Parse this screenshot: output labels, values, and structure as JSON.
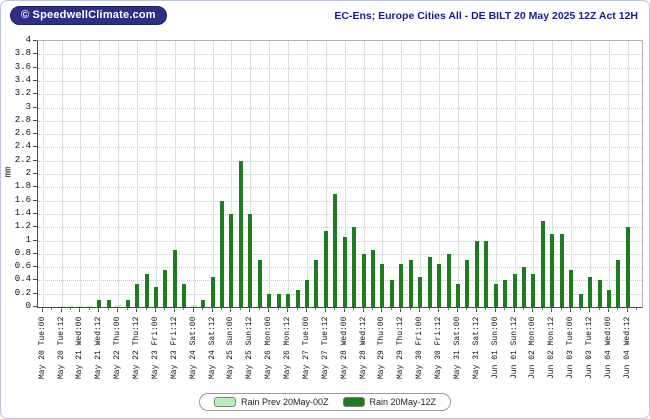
{
  "branding": {
    "logo_text": "© SpeedwellClimate.com"
  },
  "header": {
    "title": "EC-Ens; Europe Cities All - DE BILT 20 May 2025 12Z Act 12H"
  },
  "chart_data": {
    "type": "bar",
    "title": "EC-Ens; Europe Cities All - DE BILT 20 May 2025 12Z Act 12H",
    "xlabel": "",
    "ylabel": "mm",
    "ylim": [
      0,
      4
    ],
    "ytick_step": 0.2,
    "grid": true,
    "legend_position": "bottom-center",
    "x_structure": "two 6-hourly bars per labelled 12h tick",
    "x_tick_labels": [
      "May 20 Tue:00",
      "May 20 Tue:12",
      "May 21 Wed:00",
      "May 21 Wed:12",
      "May 22 Thu:00",
      "May 22 Thu:12",
      "May 23 Fri:00",
      "May 23 Fri:12",
      "May 24 Sat:00",
      "May 24 Sat:12",
      "May 25 Sun:00",
      "May 25 Sun:12",
      "May 26 Mon:00",
      "May 26 Mon:12",
      "May 27 Tue:00",
      "May 27 Tue:12",
      "May 28 Wed:00",
      "May 28 Wed:12",
      "May 29 Thu:00",
      "May 29 Thu:12",
      "May 30 Fri:00",
      "May 30 Fri:12",
      "May 31 Sat:00",
      "May 31 Sat:12",
      "Jun 01 Sun:00",
      "Jun 01 Sun:12",
      "Jun 02 Mon:00",
      "Jun 02 Mon:12",
      "Jun 03 Tue:00",
      "Jun 03 Tue:12",
      "Jun 04 Wed:00",
      "Jun 04 Wed:12"
    ],
    "series": [
      {
        "name": "Rain Prev 20May-00Z",
        "color": "#b6f0b6",
        "values": [
          0,
          0,
          0.02,
          0.02,
          0.02,
          0.02,
          0,
          0,
          0.03,
          0,
          0,
          0,
          0,
          0,
          0,
          0,
          0.03,
          0,
          0,
          0,
          0,
          0,
          0,
          0,
          0,
          0,
          0,
          0,
          0,
          0,
          0,
          0,
          0,
          0,
          0,
          0,
          0,
          0,
          0,
          0,
          0,
          0,
          0,
          0,
          0,
          0,
          0,
          0,
          0,
          0,
          0,
          0,
          0,
          0,
          0,
          0,
          0,
          0,
          0,
          0,
          0,
          0,
          0,
          0
        ]
      },
      {
        "name": "Rain 20May-12Z",
        "color": "#1e7b1e",
        "values": [
          0,
          0,
          0,
          0,
          0,
          0,
          0.1,
          0.1,
          0,
          0.1,
          0.35,
          0.5,
          0.3,
          0.55,
          0.85,
          0.35,
          0,
          0.1,
          0.45,
          1.6,
          1.4,
          2.2,
          1.4,
          0.7,
          0.2,
          0.2,
          0.2,
          0.25,
          0.4,
          0.7,
          1.15,
          1.7,
          1.05,
          1.2,
          0.8,
          0.85,
          0.65,
          0.4,
          0.65,
          0.7,
          0.45,
          0.75,
          0.65,
          0.8,
          0.35,
          0.7,
          1.0,
          1.0,
          0.35,
          0.4,
          0.5,
          0.6,
          0.5,
          1.3,
          1.1,
          1.1,
          0.55,
          0.2,
          0.45,
          0.4,
          0.25,
          0.7,
          1.2,
          0
        ]
      }
    ]
  }
}
